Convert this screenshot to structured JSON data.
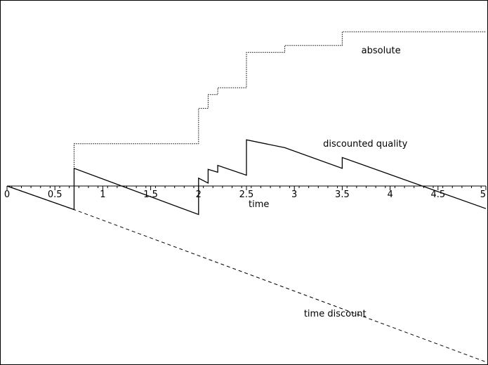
{
  "chart_data": {
    "type": "line",
    "title": "",
    "xlabel": "time",
    "ylabel": "",
    "xlim": [
      0,
      5
    ],
    "ylim": [
      -1.9,
      1.7
    ],
    "grid": false,
    "legend": "none",
    "x_ticks": [
      0,
      0.5,
      1,
      1.5,
      2,
      2.5,
      3,
      3.5,
      4,
      4.5,
      5
    ],
    "x_tick_labels": [
      "0",
      "0.5",
      "1",
      "1.5",
      "2",
      "2.5",
      "3",
      "3.5",
      "4",
      "4.5",
      "5"
    ],
    "series": [
      {
        "name": "absolute",
        "style": "dotted",
        "points": [
          [
            0.7,
            0
          ],
          [
            0.7,
            0.43
          ],
          [
            2,
            0.43
          ],
          [
            2,
            0.79
          ],
          [
            2.1,
            0.79
          ],
          [
            2.1,
            0.93
          ],
          [
            2.2,
            0.93
          ],
          [
            2.2,
            1.0
          ],
          [
            2.5,
            1.0
          ],
          [
            2.5,
            1.36
          ],
          [
            2.9,
            1.36
          ],
          [
            2.9,
            1.43
          ],
          [
            3.5,
            1.43
          ],
          [
            3.5,
            1.57
          ],
          [
            5,
            1.57
          ]
        ]
      },
      {
        "name": "discounted quality",
        "style": "solid",
        "points": [
          [
            0,
            0
          ],
          [
            0.7,
            -0.24
          ],
          [
            0.7,
            0.18
          ],
          [
            2,
            -0.29
          ],
          [
            2,
            0.08
          ],
          [
            2.1,
            0.03
          ],
          [
            2.1,
            0.17
          ],
          [
            2.2,
            0.14
          ],
          [
            2.2,
            0.21
          ],
          [
            2.5,
            0.11
          ],
          [
            2.5,
            0.47
          ],
          [
            2.9,
            0.39
          ],
          [
            2.9,
            0.39
          ],
          [
            3.5,
            0.18
          ],
          [
            3.5,
            0.29
          ],
          [
            5,
            -0.23
          ]
        ]
      },
      {
        "name": "time discount",
        "style": "dashed",
        "points": [
          [
            0,
            0
          ],
          [
            0.7,
            -0.24
          ],
          [
            5,
            -1.79
          ]
        ]
      }
    ],
    "labels": [
      {
        "text": "absolute",
        "x": 3.7,
        "y": 1.35
      },
      {
        "text": "discounted quality",
        "x": 3.3,
        "y": 0.4
      },
      {
        "text": "time discount",
        "x": 3.1,
        "y": -1.33
      }
    ]
  }
}
